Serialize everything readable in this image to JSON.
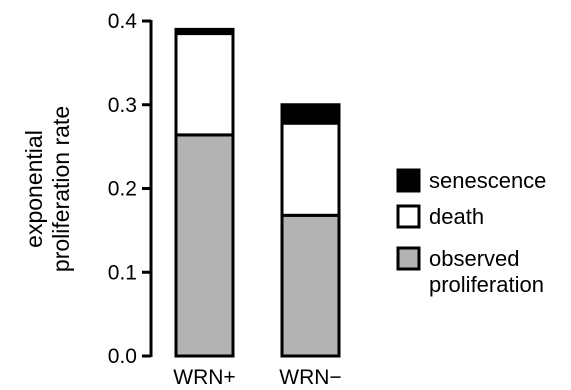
{
  "chart_data": {
    "type": "bar",
    "stacked": true,
    "categories": [
      "WRN+",
      "WRN−"
    ],
    "series": [
      {
        "name": "observed proliferation",
        "values": [
          0.264,
          0.168
        ],
        "color": "#b3b3b3"
      },
      {
        "name": "death",
        "values": [
          0.121,
          0.11
        ],
        "color": "#ffffff"
      },
      {
        "name": "senescence",
        "values": [
          0.005,
          0.022
        ],
        "color": "#000000"
      }
    ],
    "title": "",
    "xlabel": "",
    "ylabel": [
      "exponential",
      "proliferation rate"
    ],
    "ylim": [
      0,
      0.4
    ],
    "yticks": [
      "0.0",
      "0.1",
      "0.2",
      "0.3",
      "0.4"
    ],
    "ytick_values": [
      0,
      0.1,
      0.2,
      0.3,
      0.4
    ],
    "grid": false,
    "legend": {
      "placement": "right",
      "order": [
        2,
        1,
        0
      ],
      "labels": [
        [
          "senescence"
        ],
        [
          "death"
        ],
        [
          "observed",
          "proliferation"
        ]
      ]
    }
  }
}
